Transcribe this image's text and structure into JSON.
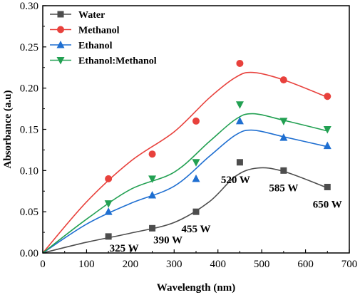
{
  "chart_data": {
    "type": "scatter",
    "xlabel": "Wavelength (nm)",
    "ylabel": "Absorbance (a.u)",
    "xlim": [
      0,
      700
    ],
    "ylim": [
      0,
      0.3
    ],
    "xticks": [
      0,
      100,
      200,
      300,
      400,
      500,
      600,
      700
    ],
    "yticks": [
      0.0,
      0.05,
      0.1,
      0.15,
      0.2,
      0.25,
      0.3
    ],
    "xtick_labels": [
      "0",
      "100",
      "200",
      "300",
      "400",
      "500",
      "600",
      "700"
    ],
    "ytick_labels": [
      "0.00",
      "0.05",
      "0.10",
      "0.15",
      "0.20",
      "0.25",
      "0.30"
    ],
    "grid": false,
    "legend_position": "top-left",
    "series": [
      {
        "name": "Water",
        "marker": "square",
        "color": "#4d4d4d",
        "x": [
          150,
          250,
          350,
          450,
          550,
          650
        ],
        "y": [
          0.02,
          0.03,
          0.05,
          0.11,
          0.1,
          0.08
        ],
        "fit_curve": [
          [
            0,
            0
          ],
          [
            100,
            0.013
          ],
          [
            200,
            0.024
          ],
          [
            300,
            0.037
          ],
          [
            380,
            0.062
          ],
          [
            440,
            0.093
          ],
          [
            490,
            0.103
          ],
          [
            550,
            0.099
          ],
          [
            650,
            0.079
          ]
        ]
      },
      {
        "name": "Methanol",
        "marker": "circle",
        "color": "#e8413c",
        "x": [
          150,
          250,
          350,
          450,
          550,
          650
        ],
        "y": [
          0.09,
          0.12,
          0.16,
          0.23,
          0.21,
          0.19
        ],
        "fit_curve": [
          [
            0,
            0
          ],
          [
            100,
            0.062
          ],
          [
            200,
            0.111
          ],
          [
            300,
            0.147
          ],
          [
            380,
            0.188
          ],
          [
            440,
            0.213
          ],
          [
            480,
            0.219
          ],
          [
            550,
            0.21
          ],
          [
            650,
            0.189
          ]
        ]
      },
      {
        "name": "Ethanol",
        "marker": "triangle-up",
        "color": "#1f6fd1",
        "x": [
          150,
          250,
          350,
          450,
          550,
          650
        ],
        "y": [
          0.05,
          0.07,
          0.09,
          0.16,
          0.14,
          0.13
        ],
        "fit_curve": [
          [
            0,
            0
          ],
          [
            100,
            0.035
          ],
          [
            200,
            0.06
          ],
          [
            300,
            0.081
          ],
          [
            380,
            0.117
          ],
          [
            440,
            0.143
          ],
          [
            480,
            0.149
          ],
          [
            550,
            0.141
          ],
          [
            650,
            0.129
          ]
        ]
      },
      {
        "name": "Ethanol:Methanol",
        "marker": "triangle-down",
        "color": "#22a052",
        "x": [
          150,
          250,
          350,
          450,
          550,
          650
        ],
        "y": [
          0.06,
          0.09,
          0.11,
          0.18,
          0.16,
          0.15
        ],
        "fit_curve": [
          [
            0,
            0
          ],
          [
            100,
            0.041
          ],
          [
            200,
            0.077
          ],
          [
            300,
            0.098
          ],
          [
            380,
            0.135
          ],
          [
            440,
            0.162
          ],
          [
            480,
            0.169
          ],
          [
            550,
            0.161
          ],
          [
            650,
            0.148
          ]
        ]
      }
    ],
    "annotations": [
      {
        "text": "325 W",
        "x": 150,
        "y": 0.02
      },
      {
        "text": "390 W",
        "x": 250,
        "y": 0.03
      },
      {
        "text": "455 W",
        "x": 350,
        "y": 0.05
      },
      {
        "text": "520 W",
        "x": 450,
        "y": 0.11
      },
      {
        "text": "585 W",
        "x": 550,
        "y": 0.1
      },
      {
        "text": "650 W",
        "x": 650,
        "y": 0.08
      }
    ]
  }
}
